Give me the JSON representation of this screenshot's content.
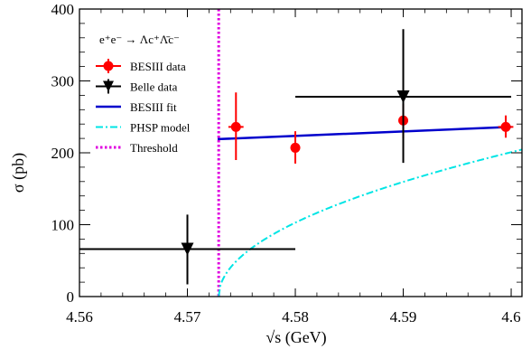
{
  "chart_data": {
    "type": "scatter",
    "xlabel": "√s (GeV)",
    "ylabel": "σ (pb)",
    "xlim": [
      4.56,
      4.601
    ],
    "ylim": [
      0,
      400
    ],
    "x_ticks": [
      "4.56",
      "4.57",
      "4.58",
      "4.59",
      "4.6"
    ],
    "x_tick_values": [
      4.56,
      4.57,
      4.58,
      4.59,
      4.6
    ],
    "y_ticks": [
      "0",
      "100",
      "200",
      "300",
      "400"
    ],
    "y_tick_values": [
      0,
      100,
      200,
      300,
      400
    ],
    "legend_placement": "top-left",
    "legend_title": "e⁺e⁻ → Λc⁺Λ̄c⁻",
    "series": [
      {
        "name": "BESIII data",
        "kind": "points",
        "marker": "circle",
        "color": "#ff0000",
        "points": [
          {
            "x": 4.5745,
            "y": 236,
            "xerr": 0.0007,
            "ylo": 190,
            "yhi": 284
          },
          {
            "x": 4.58,
            "y": 207,
            "xerr": 0.0,
            "ylo": 185,
            "yhi": 230
          },
          {
            "x": 4.59,
            "y": 245,
            "xerr": 0.0,
            "ylo": 220,
            "yhi": 268
          },
          {
            "x": 4.5995,
            "y": 236,
            "xerr": 0.0007,
            "ylo": 221,
            "yhi": 252
          }
        ]
      },
      {
        "name": "Belle data",
        "kind": "points",
        "marker": "triangle-down",
        "color": "#000000",
        "points": [
          {
            "x": 4.57,
            "y": 66,
            "xlo": 4.56,
            "xhi": 4.58,
            "ylo": 17,
            "yhi": 114
          },
          {
            "x": 4.59,
            "y": 278,
            "xlo": 4.58,
            "xhi": 4.6,
            "ylo": 186,
            "yhi": 372
          }
        ]
      },
      {
        "name": "BESIII fit",
        "kind": "line",
        "style": "solid",
        "color": "#0000cc",
        "x": [
          4.5728,
          4.6
        ],
        "y": [
          219,
          236
        ]
      },
      {
        "name": "PHSP model",
        "kind": "line",
        "style": "dash-dot",
        "color": "#00e5e5",
        "threshold": 4.5729,
        "scale": 1220,
        "x_start": 4.5729,
        "x_end": 4.601
      },
      {
        "name": "Threshold",
        "kind": "vline",
        "style": "dotted",
        "color": "#e000e0",
        "x": 4.5729
      }
    ]
  }
}
